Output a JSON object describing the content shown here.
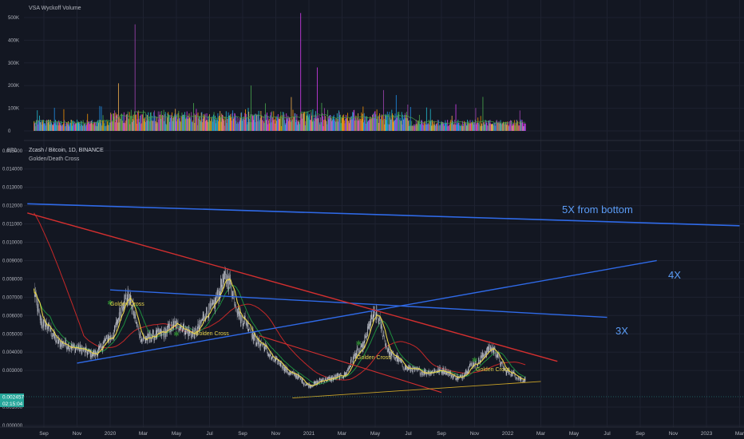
{
  "volume_pane": {
    "title": "VSA Wyckoff Volume",
    "y_ticks": [
      "500K",
      "400K",
      "300K",
      "200K",
      "100K",
      "0"
    ]
  },
  "price_pane": {
    "symbol_line": "Zcash / Bitcoin, 1D, BINANCE",
    "indicator": "Golden/Death Cross",
    "axis_unit": "BTC",
    "y_ticks": [
      "0.015000",
      "0.014000",
      "0.013000",
      "0.012000",
      "0.011000",
      "0.010000",
      "0.009000",
      "0.008000",
      "0.007000",
      "0.006000",
      "0.005000",
      "0.004000",
      "0.003000",
      "0.001000",
      "0.000000"
    ],
    "last_price": "0.002457",
    "countdown": "02:15:04",
    "annotations": [
      "5X from bottom",
      "4X",
      "3X"
    ],
    "cross_labels": [
      "Golden Cross",
      "Golden Cross",
      "Golden Cross",
      "Golden Cross"
    ]
  },
  "x_ticks": [
    "Sep",
    "Nov",
    "2020",
    "Mar",
    "May",
    "Jul",
    "Sep",
    "Nov",
    "2021",
    "Mar",
    "May",
    "Jul",
    "Sep",
    "Nov",
    "2022",
    "Mar",
    "May",
    "Jul",
    "Sep",
    "Nov",
    "2023",
    "Mar"
  ],
  "colors": {
    "background": "#131722",
    "grid": "#1e2230",
    "text": "#b2b5be",
    "blue_line": "#2f6ae8",
    "red_line": "#d32f2f",
    "annotation": "#5b9cf6",
    "price": "#b2b5be",
    "ma_fast": "#e8d44a",
    "ma_mid": "#1e8e3e",
    "ma_slow": "#c62828",
    "support": "#c9a227"
  },
  "chart_data": [
    {
      "type": "bar",
      "title": "VSA Wyckoff Volume",
      "x_range": [
        "2019-08",
        "2022-02"
      ],
      "ylim": [
        0,
        550000
      ],
      "note_series": "daily volume bars colored by VSA classification",
      "peaks": [
        {
          "x": "2020-02",
          "value": 470000
        },
        {
          "x": "2020-01",
          "value": 210000
        },
        {
          "x": "2020-09",
          "value": 200000
        },
        {
          "x": "2020-12",
          "value": 520000
        },
        {
          "x": "2021-01",
          "value": 280000
        },
        {
          "x": "2021-05",
          "value": 180000
        },
        {
          "x": "2021-11",
          "value": 150000
        }
      ]
    },
    {
      "type": "line",
      "title": "Zcash / Bitcoin, 1D, BINANCE",
      "ylabel": "BTC",
      "ylim": [
        0,
        0.016
      ],
      "series": [
        {
          "name": "Zcash / Bitcoin",
          "x": [
            "2019-08",
            "2019-09",
            "2019-10",
            "2019-11",
            "2019-12",
            "2020-01",
            "2020-02",
            "2020-03",
            "2020-04",
            "2020-05",
            "2020-06",
            "2020-07",
            "2020-08",
            "2020-09",
            "2020-10",
            "2020-11",
            "2020-12",
            "2021-01",
            "2021-02",
            "2021-03",
            "2021-04",
            "2021-05",
            "2021-06",
            "2021-07",
            "2021-08",
            "2021-09",
            "2021-10",
            "2021-11",
            "2021-12",
            "2022-01",
            "2022-02"
          ],
          "values": [
            0.0083,
            0.0055,
            0.0045,
            0.0042,
            0.0039,
            0.0048,
            0.007,
            0.0047,
            0.005,
            0.0055,
            0.005,
            0.0063,
            0.008,
            0.0058,
            0.0045,
            0.0035,
            0.0028,
            0.0022,
            0.0025,
            0.0027,
            0.004,
            0.006,
            0.0038,
            0.0031,
            0.0029,
            0.003,
            0.0026,
            0.0034,
            0.0042,
            0.0029,
            0.0025
          ]
        }
      ],
      "trendlines": [
        {
          "label": "5X from bottom",
          "from": [
            "2019-08",
            0.0121
          ],
          "to": [
            "2023-03",
            0.0109
          ]
        },
        {
          "label": "4X",
          "from": [
            "2019-11",
            0.0034
          ],
          "to": [
            "2022-10",
            0.009
          ]
        },
        {
          "label": "3X",
          "from": [
            "2020-01",
            0.0074
          ],
          "to": [
            "2022-07",
            0.0059
          ]
        },
        {
          "label": "",
          "from": [
            "2019-08",
            0.0116
          ],
          "to": [
            "2022-04",
            0.0035
          ]
        },
        {
          "label": "",
          "from": [
            "2020-10",
            0.0049
          ],
          "to": [
            "2021-09",
            0.0018
          ]
        },
        {
          "label": "",
          "from": [
            "2020-12",
            0.0015
          ],
          "to": [
            "2022-03",
            0.0024
          ]
        }
      ],
      "cross_signals": [
        {
          "label": "Golden Cross",
          "x": "2020-01",
          "value": 0.0069
        },
        {
          "label": "Golden Cross",
          "x": "2020-05",
          "value": 0.0052
        },
        {
          "label": "Golden Cross",
          "x": "2021-04",
          "value": 0.0047
        },
        {
          "label": "Golden Cross",
          "x": "2021-11",
          "value": 0.0038
        }
      ]
    }
  ]
}
